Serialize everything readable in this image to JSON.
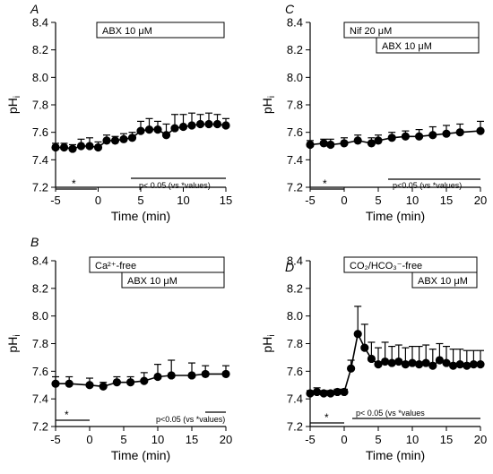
{
  "chart_data": [
    {
      "type": "line",
      "panel": "A",
      "xlabel": "Time (min)",
      "ylabel": "pHi",
      "xlim": [
        -5,
        15
      ],
      "ylim": [
        7.2,
        8.4
      ],
      "xticks": [
        -5,
        0,
        5,
        10,
        15
      ],
      "yticks": [
        "7.2",
        "7.4",
        "7.6",
        "7.8",
        "8.0",
        "8.2",
        "8.4"
      ],
      "boxes": [
        "ABX 10 μM"
      ],
      "star_label": "*",
      "sig_label": "p< 0.05 (vs *values)",
      "series": [
        {
          "x": [
            -5,
            -4,
            -3,
            -2,
            -1,
            0,
            1,
            2,
            3,
            4,
            5,
            6,
            7,
            8,
            9,
            10,
            11,
            12,
            13,
            14,
            15
          ],
          "y": [
            7.49,
            7.49,
            7.48,
            7.5,
            7.5,
            7.49,
            7.54,
            7.54,
            7.55,
            7.56,
            7.61,
            7.62,
            7.62,
            7.58,
            7.63,
            7.64,
            7.65,
            7.66,
            7.66,
            7.66,
            7.65
          ],
          "err": [
            0.03,
            0.03,
            0.03,
            0.05,
            0.06,
            0.04,
            0.04,
            0.03,
            0.04,
            0.04,
            0.07,
            0.08,
            0.06,
            0.08,
            0.1,
            0.09,
            0.09,
            0.07,
            0.08,
            0.07,
            0.05
          ]
        }
      ]
    },
    {
      "type": "line",
      "panel": "B",
      "xlabel": "Time (min)",
      "ylabel": "pHi",
      "xlim": [
        -5,
        20
      ],
      "ylim": [
        7.2,
        8.4
      ],
      "xticks": [
        -5,
        0,
        5,
        10,
        15,
        20
      ],
      "yticks": [
        "7.2",
        "7.4",
        "7.6",
        "7.8",
        "8.0",
        "8.2",
        "8.4"
      ],
      "boxes": [
        "Ca²⁺-free",
        "ABX 10 μM"
      ],
      "star_label": "*",
      "sig_label": "p<0.05 (vs *values)",
      "series": [
        {
          "x": [
            -5,
            -3,
            0,
            2,
            4,
            6,
            8,
            10,
            12,
            15,
            17,
            20
          ],
          "y": [
            7.51,
            7.51,
            7.5,
            7.49,
            7.52,
            7.52,
            7.53,
            7.56,
            7.57,
            7.57,
            7.58,
            7.58
          ],
          "err": [
            0.05,
            0.05,
            0.05,
            0.03,
            0.04,
            0.04,
            0.06,
            0.09,
            0.11,
            0.09,
            0.06,
            0.06
          ]
        }
      ]
    },
    {
      "type": "line",
      "panel": "C",
      "xlabel": "Time (min)",
      "ylabel": "pHi",
      "xlim": [
        -5,
        20
      ],
      "ylim": [
        7.2,
        8.4
      ],
      "xticks": [
        -5,
        0,
        5,
        10,
        15,
        20
      ],
      "yticks": [
        "7.2",
        "7.4",
        "7.6",
        "7.8",
        "8.0",
        "8.2",
        "8.4"
      ],
      "boxes": [
        "Nif 20 μM",
        "ABX 10 μM"
      ],
      "star_label": "*",
      "sig_label": "p<0.05 (vs *values)",
      "series": [
        {
          "x": [
            -5,
            -3,
            -2,
            0,
            2,
            4,
            5,
            7,
            9,
            11,
            13,
            15,
            17,
            20
          ],
          "y": [
            7.51,
            7.52,
            7.51,
            7.52,
            7.54,
            7.52,
            7.54,
            7.56,
            7.57,
            7.57,
            7.58,
            7.59,
            7.6,
            7.61
          ],
          "err": [
            0.03,
            0.03,
            0.04,
            0.04,
            0.04,
            0.04,
            0.04,
            0.04,
            0.04,
            0.05,
            0.06,
            0.06,
            0.06,
            0.07
          ]
        }
      ]
    },
    {
      "type": "line",
      "panel": "D",
      "xlabel": "Time (min)",
      "ylabel": "pHi",
      "xlim": [
        -5,
        20
      ],
      "ylim": [
        7.2,
        8.4
      ],
      "xticks": [
        -5,
        0,
        5,
        10,
        15,
        20
      ],
      "yticks": [
        "7.2",
        "7.4",
        "7.6",
        "7.8",
        "8.0",
        "8.2",
        "8.4"
      ],
      "boxes": [
        "CO₂/HCO₃⁻-free",
        "ABX 10 μM"
      ],
      "star_label": "*",
      "sig_label": "p< 0.05 (vs *values",
      "series": [
        {
          "x": [
            -5,
            -4,
            -3,
            -2,
            -1,
            0,
            1,
            2,
            3,
            4,
            5,
            6,
            7,
            8,
            9,
            10,
            11,
            12,
            13,
            14,
            15,
            16,
            17,
            18,
            19,
            20
          ],
          "y": [
            7.44,
            7.45,
            7.44,
            7.44,
            7.45,
            7.45,
            7.62,
            7.87,
            7.77,
            7.69,
            7.65,
            7.67,
            7.66,
            7.67,
            7.65,
            7.66,
            7.65,
            7.66,
            7.64,
            7.68,
            7.66,
            7.64,
            7.65,
            7.64,
            7.65,
            7.65
          ],
          "err": [
            0.02,
            0.03,
            0.02,
            0.02,
            0.02,
            0.02,
            0.06,
            0.2,
            0.17,
            0.12,
            0.12,
            0.14,
            0.12,
            0.12,
            0.12,
            0.12,
            0.13,
            0.13,
            0.12,
            0.12,
            0.12,
            0.12,
            0.11,
            0.11,
            0.1,
            0.1
          ]
        }
      ]
    }
  ]
}
